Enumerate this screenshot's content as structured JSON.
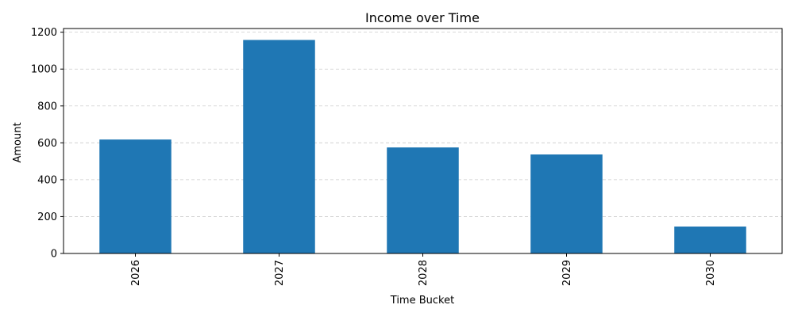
{
  "chart_data": {
    "type": "bar",
    "title": "Income over Time",
    "xlabel": "Time Bucket",
    "ylabel": "Amount",
    "categories": [
      "2026",
      "2027",
      "2028",
      "2029",
      "2030"
    ],
    "values": [
      618,
      1158,
      575,
      537,
      146
    ],
    "ylim": [
      0,
      1220
    ],
    "yticks": [
      0,
      200,
      400,
      600,
      800,
      1000,
      1200
    ],
    "ytick_labels": [
      "0",
      "200",
      "400",
      "600",
      "800",
      "1000",
      "1200"
    ],
    "grid": "y-dashed",
    "legend": "none",
    "bar_color": "#1f77b4",
    "grid_color": "#cccccc"
  }
}
